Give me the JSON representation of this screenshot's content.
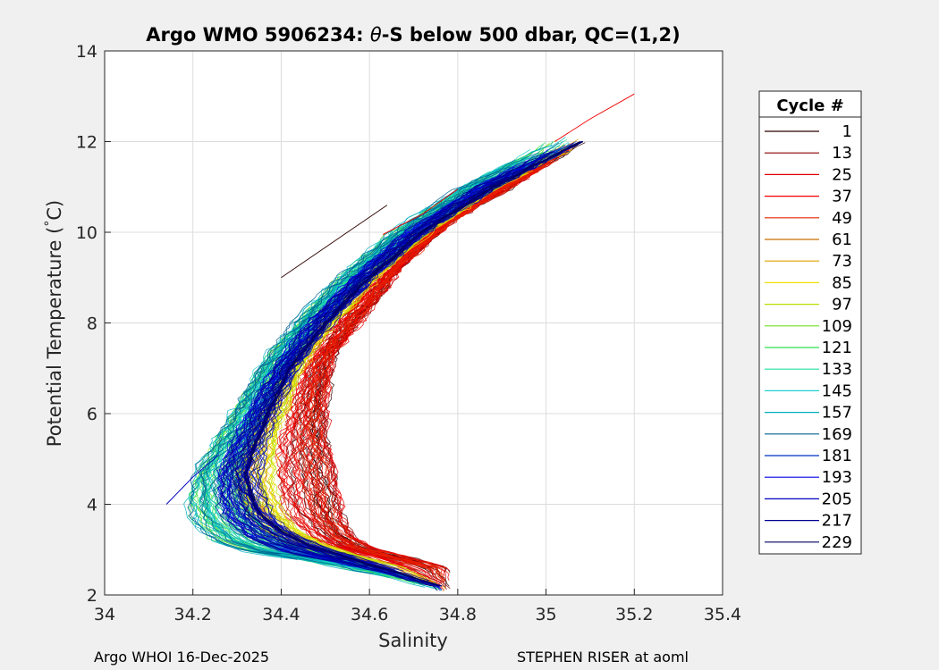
{
  "chart_data": {
    "type": "line",
    "title_prefix": "Argo WMO 5906234: ",
    "title_theta": "θ",
    "title_suffix": "-S below 500 dbar,  QC=(1,2)",
    "xlabel": "Salinity",
    "ylabel_main": "Potential Temperature (",
    "ylabel_deg": "°",
    "ylabel_end": "C)",
    "xlim": [
      34,
      35.4
    ],
    "ylim": [
      2,
      14
    ],
    "xticks": [
      34,
      34.2,
      34.4,
      34.6,
      34.8,
      35,
      35.2,
      35.4
    ],
    "xtick_labels": [
      "34",
      "34.2",
      "34.4",
      "34.6",
      "34.8",
      "35",
      "35.2",
      "35.4"
    ],
    "yticks": [
      2,
      4,
      6,
      8,
      10,
      12,
      14
    ],
    "ytick_labels": [
      "2",
      "4",
      "6",
      "8",
      "10",
      "12",
      "14"
    ],
    "grid": true,
    "legend_title": "Cycle #",
    "legend_position": "right-outside",
    "legend": [
      {
        "label": "1",
        "color": "#2e0000"
      },
      {
        "label": "13",
        "color": "#8b0000"
      },
      {
        "label": "25",
        "color": "#e00000"
      },
      {
        "label": "37",
        "color": "#f00000"
      },
      {
        "label": "49",
        "color": "#e82000"
      },
      {
        "label": "61",
        "color": "#c87000"
      },
      {
        "label": "73",
        "color": "#e0a000"
      },
      {
        "label": "85",
        "color": "#f0e000"
      },
      {
        "label": "97",
        "color": "#b8e000"
      },
      {
        "label": "109",
        "color": "#70e020"
      },
      {
        "label": "121",
        "color": "#30e050"
      },
      {
        "label": "133",
        "color": "#20e0a0"
      },
      {
        "label": "145",
        "color": "#20d0d0"
      },
      {
        "label": "157",
        "color": "#00b0c0"
      },
      {
        "label": "169",
        "color": "#006090"
      },
      {
        "label": "181",
        "color": "#0030c0"
      },
      {
        "label": "193",
        "color": "#0000e0"
      },
      {
        "label": "205",
        "color": "#0000c0"
      },
      {
        "label": "217",
        "color": "#000090"
      },
      {
        "label": "229",
        "color": "#000060"
      }
    ],
    "mean_profile": {
      "s": [
        34.76,
        34.66,
        34.56,
        34.46,
        34.4,
        34.35,
        34.33,
        34.32,
        34.34,
        34.37,
        34.42,
        34.5,
        34.6,
        34.72,
        34.88,
        35.1
      ],
      "t": [
        2.2,
        2.5,
        2.8,
        3.1,
        3.4,
        3.8,
        4.2,
        4.7,
        5.3,
        6.0,
        7.0,
        8.0,
        9.0,
        10.0,
        11.0,
        12.1
      ]
    },
    "envelope": {
      "fresh": {
        "s": [
          34.76,
          34.62,
          34.45,
          34.3,
          34.22,
          34.18,
          34.17,
          34.19,
          34.23,
          34.28,
          34.34,
          34.42,
          34.52,
          34.64,
          34.8,
          35.0
        ],
        "t": [
          2.1,
          2.45,
          2.75,
          2.95,
          3.2,
          3.6,
          4.1,
          4.7,
          5.3,
          6.0,
          7.0,
          8.0,
          9.0,
          10.0,
          11.0,
          12.0
        ]
      },
      "salty": {
        "s": [
          34.78,
          34.72,
          34.66,
          34.6,
          34.56,
          34.54,
          34.53,
          34.52,
          34.5,
          34.5,
          34.52,
          34.6,
          34.68,
          34.78,
          34.95,
          35.1
        ],
        "t": [
          2.6,
          2.75,
          2.9,
          3.05,
          3.3,
          3.7,
          4.2,
          4.8,
          5.5,
          6.3,
          7.3,
          8.3,
          9.3,
          10.2,
          11.2,
          12.1
        ]
      }
    },
    "outliers": [
      {
        "s": [
          34.63,
          34.72,
          34.8
        ],
        "t": [
          9.95,
          10.4,
          10.95
        ]
      },
      {
        "s": [
          35.02,
          35.1,
          35.2
        ],
        "t": [
          12.0,
          12.5,
          13.05
        ]
      },
      {
        "s": [
          34.14,
          34.2,
          34.26
        ],
        "t": [
          4.0,
          4.6,
          5.1
        ]
      },
      {
        "s": [
          34.4,
          34.52,
          34.64
        ],
        "t": [
          9.0,
          9.8,
          10.6
        ]
      }
    ]
  },
  "footer": {
    "left": "Argo WHOI 16-Dec-2025",
    "right": "STEPHEN RISER at aoml"
  }
}
